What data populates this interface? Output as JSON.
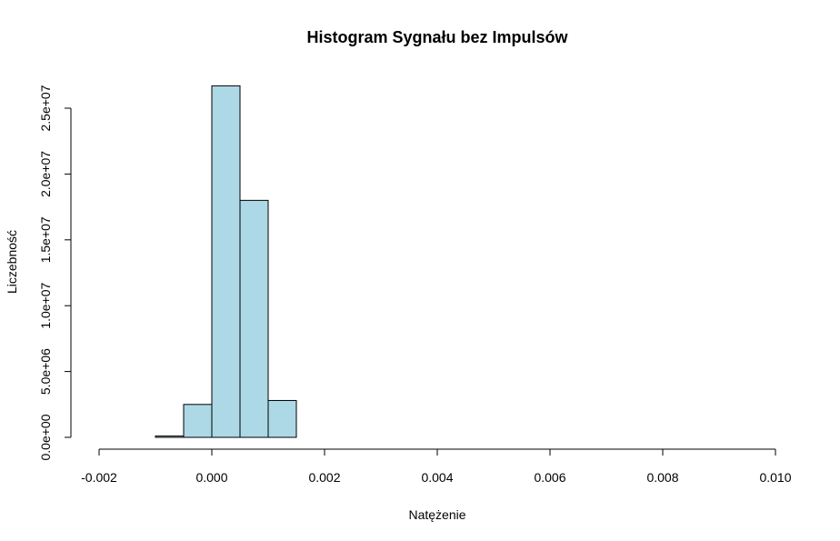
{
  "chart_data": {
    "type": "bar",
    "title": "Histogram Sygnału bez Impulsów",
    "xlabel": "Natężenie",
    "ylabel": "Liczebność",
    "xlim": [
      -0.002,
      0.01
    ],
    "ylim": [
      0,
      25000000
    ],
    "x_ticks": [
      -0.002,
      0.0,
      0.002,
      0.004,
      0.006,
      0.008,
      0.01
    ],
    "x_tick_labels": [
      "-0.002",
      "0.000",
      "0.002",
      "0.004",
      "0.006",
      "0.008",
      "0.010"
    ],
    "y_ticks": [
      0,
      5000000,
      10000000,
      15000000,
      20000000,
      25000000
    ],
    "y_tick_labels": [
      "0.0e+00",
      "5.0e+06",
      "1.0e+07",
      "1.5e+07",
      "2.0e+07",
      "2.5e+07"
    ],
    "bin_edges": [
      -0.002,
      -0.0015,
      -0.001,
      -0.0005,
      0.0,
      0.0005,
      0.001,
      0.0015,
      0.002,
      0.0025,
      0.003,
      0.0035,
      0.004,
      0.0045,
      0.005,
      0.0055,
      0.006,
      0.0065,
      0.007,
      0.0075,
      0.008,
      0.0085,
      0.009,
      0.0095,
      0.01
    ],
    "values": [
      0,
      0,
      100000,
      2500000,
      26700000,
      18000000,
      2800000,
      0,
      0,
      0,
      0,
      0,
      0,
      0,
      0,
      0,
      0,
      0,
      0,
      0,
      0,
      0,
      0,
      0
    ],
    "bar_color": "#add8e6",
    "grid": false
  }
}
